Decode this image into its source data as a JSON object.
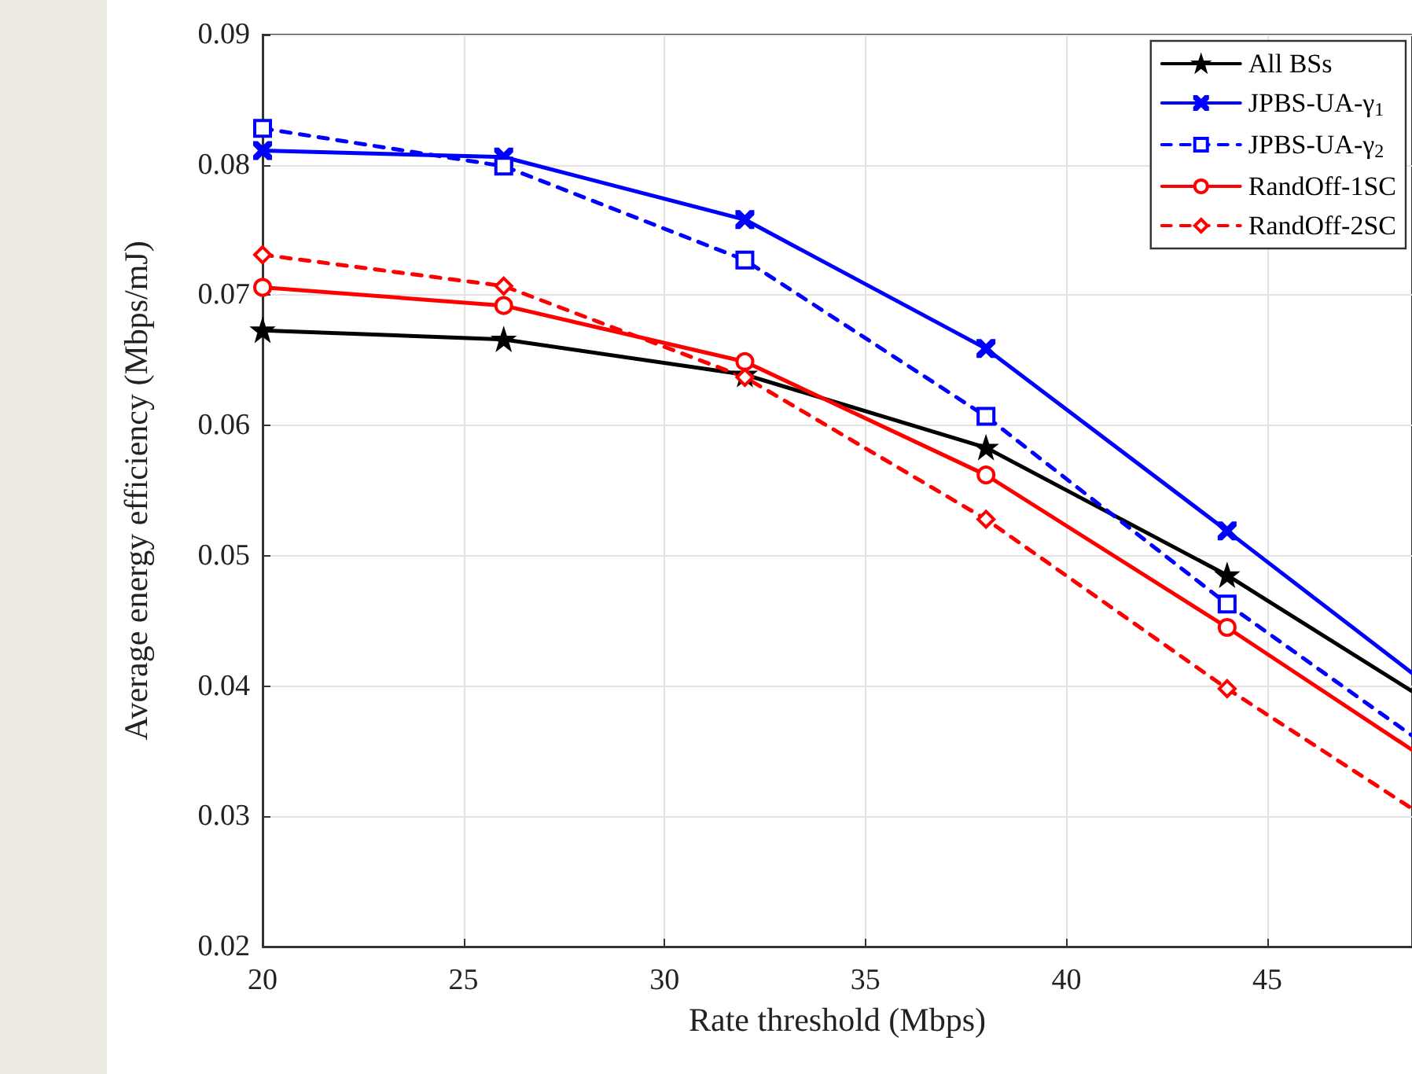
{
  "chart_data": {
    "type": "line",
    "xlabel": "Rate threshold (Mbps)",
    "ylabel": "Average energy efficiency (Mbps/mJ)",
    "x": [
      20,
      26,
      32,
      38,
      44,
      48.6
    ],
    "xlim": [
      20,
      48.6
    ],
    "xticks": [
      20,
      25,
      30,
      35,
      40,
      45
    ],
    "ylim": [
      0.02,
      0.09
    ],
    "yticks": [
      0.02,
      0.03,
      0.04,
      0.05,
      0.06,
      0.07,
      0.08,
      0.09
    ],
    "grid": true,
    "legend": "top right",
    "series": [
      {
        "name": "All BSs",
        "color": "#000000",
        "marker": "star",
        "line_style": "solid",
        "values": [
          0.0673,
          0.0666,
          0.0639,
          0.0583,
          0.0485,
          0.0396
        ]
      },
      {
        "name": "JPBS-UA-γ$_{1}$",
        "color": "#0000ff",
        "marker": "cross",
        "line_style": "solid",
        "values": [
          0.0811,
          0.0806,
          0.0758,
          0.0659,
          0.0519,
          0.041
        ]
      },
      {
        "name": "JPBS-UA-γ$_{2}$",
        "color": "#0000ff",
        "marker": "square",
        "line_style": "dashed",
        "values": [
          0.0828,
          0.0799,
          0.0727,
          0.0607,
          0.0463,
          0.0362
        ]
      },
      {
        "name": "RandOff-1SC",
        "color": "#ff0000",
        "marker": "circle",
        "line_style": "solid",
        "values": [
          0.0706,
          0.0692,
          0.0649,
          0.0562,
          0.0445,
          0.0351
        ]
      },
      {
        "name": "RandOff-2SC",
        "color": "#ff0000",
        "marker": "diamond",
        "line_style": "dashed",
        "values": [
          0.0731,
          0.0707,
          0.0637,
          0.0528,
          0.0398,
          0.0306
        ]
      }
    ]
  }
}
